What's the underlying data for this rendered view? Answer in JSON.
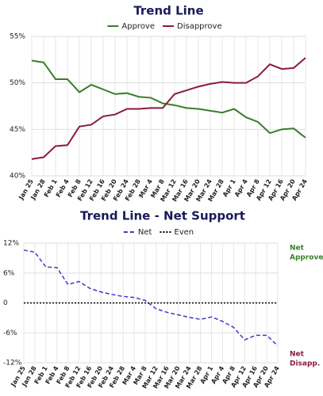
{
  "chart_data": [
    {
      "type": "line",
      "title": "Trend Line",
      "categories": [
        "Jan 25",
        "Jan 28",
        "Feb 1",
        "Feb 4",
        "Feb 8",
        "Feb 12",
        "Feb 16",
        "Feb 20",
        "Feb 24",
        "Feb 28",
        "Mar 4",
        "Mar 8",
        "Mar 12",
        "Mar 16",
        "Mar 20",
        "Mar 24",
        "Mar 28",
        "Apr 1",
        "Apr 4",
        "Apr 8",
        "Apr 12",
        "Apr 16",
        "Apr 20",
        "Apr 24"
      ],
      "series": [
        {
          "name": "Approve",
          "color": "#3a7d2a",
          "dash": "solid",
          "values": [
            52.4,
            52.2,
            50.4,
            50.4,
            49.0,
            49.8,
            49.3,
            48.8,
            48.9,
            48.5,
            48.4,
            47.8,
            47.6,
            47.3,
            47.2,
            47.0,
            46.8,
            47.2,
            46.3,
            45.8,
            44.6,
            45.0,
            45.1,
            44.1
          ]
        },
        {
          "name": "Disapprove",
          "color": "#8b1a3f",
          "dash": "solid",
          "values": [
            41.8,
            42.0,
            43.2,
            43.3,
            45.3,
            45.5,
            46.4,
            46.6,
            47.2,
            47.2,
            47.3,
            47.3,
            48.8,
            49.2,
            49.6,
            49.9,
            50.1,
            50.0,
            50.0,
            50.7,
            52.0,
            51.5,
            51.6,
            52.7
          ]
        }
      ],
      "ylim": [
        40,
        55
      ],
      "yticks": [
        {
          "value": 40,
          "label": "40%"
        },
        {
          "value": 45,
          "label": "45%"
        },
        {
          "value": 50,
          "label": "50%"
        },
        {
          "value": 55,
          "label": "55%"
        }
      ],
      "grid": true,
      "legend": "top"
    },
    {
      "type": "line",
      "title": "Trend Line - Net Support",
      "categories": [
        "Jan 25",
        "Jan 28",
        "Feb 1",
        "Feb 4",
        "Feb 8",
        "Feb 12",
        "Feb 16",
        "Feb 20",
        "Feb 24",
        "Feb 28",
        "Mar 4",
        "Mar 8",
        "Mar 12",
        "Mar 16",
        "Mar 20",
        "Mar 24",
        "Mar 28",
        "Apr 1",
        "Apr 4",
        "Apr 8",
        "Apr 12",
        "Apr 16",
        "Apr 20",
        "Apr 24"
      ],
      "series": [
        {
          "name": "Net",
          "color": "#3b3bcc",
          "dash": "dashed",
          "values": [
            10.6,
            10.2,
            7.2,
            7.1,
            3.7,
            4.3,
            2.9,
            2.2,
            1.7,
            1.3,
            1.1,
            0.5,
            -1.2,
            -1.9,
            -2.4,
            -2.9,
            -3.3,
            -2.8,
            -3.7,
            -4.9,
            -7.4,
            -6.5,
            -6.5,
            -8.6
          ]
        },
        {
          "name": "Even",
          "color": "#000000",
          "dash": "dotted",
          "values": [
            0,
            0,
            0,
            0,
            0,
            0,
            0,
            0,
            0,
            0,
            0,
            0,
            0,
            0,
            0,
            0,
            0,
            0,
            0,
            0,
            0,
            0,
            0,
            0
          ]
        }
      ],
      "ylim": [
        -12,
        12
      ],
      "yticks": [
        {
          "value": -12,
          "label": "-12%"
        },
        {
          "value": -6,
          "label": "-6%"
        },
        0,
        {
          "value": 6,
          "label": "6%"
        },
        {
          "value": 12,
          "label": "12%"
        }
      ],
      "grid": true,
      "legend": "top",
      "annotations": [
        {
          "lines": [
            "Net",
            "Approve"
          ],
          "color": "#3a7d2a"
        },
        {
          "lines": [
            "Net",
            "Disapp."
          ],
          "color": "#8b1a3f"
        }
      ]
    }
  ]
}
